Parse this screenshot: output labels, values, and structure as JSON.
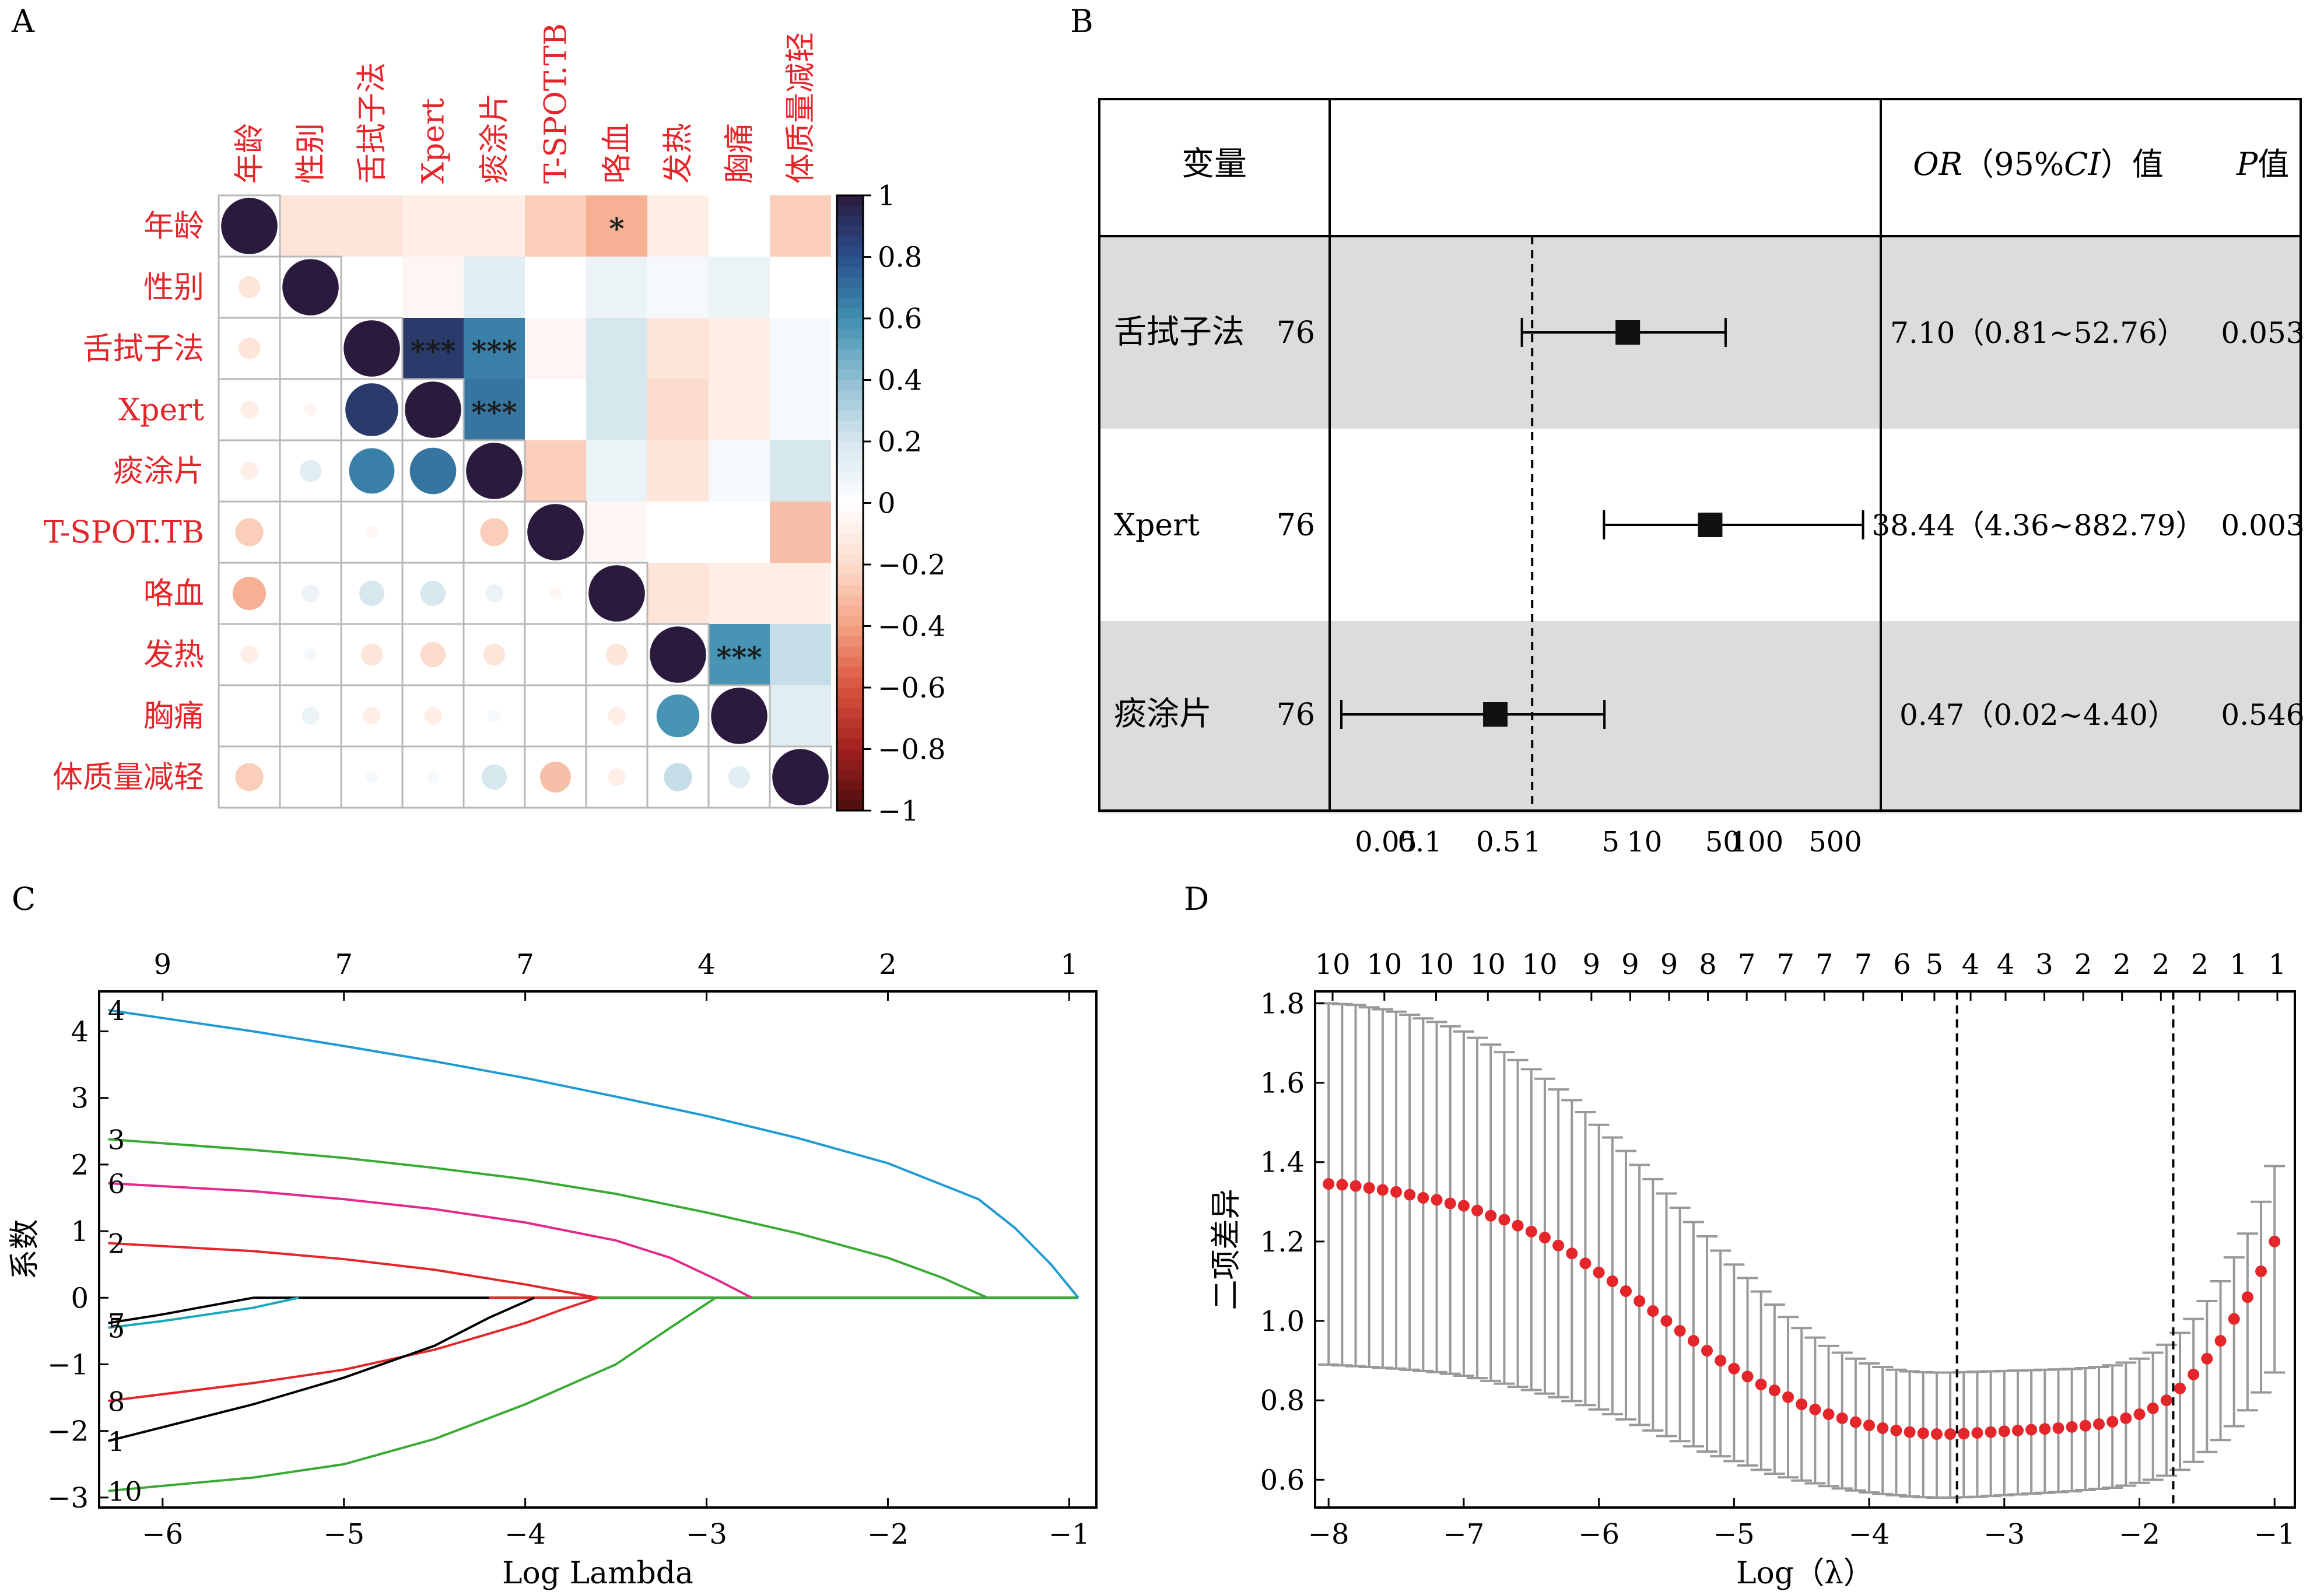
{
  "panels": {
    "A": "A",
    "B": "B",
    "C": "C",
    "D": "D"
  },
  "chart_data": [
    {
      "panel": "A",
      "type": "heatmap",
      "variables": [
        "年龄",
        "性别",
        "舌拭子法",
        "Xpert",
        "痰涂片",
        "T-SPOT.TB",
        "咯血",
        "发热",
        "胸痛",
        "体质量减轻"
      ],
      "upper_triangle": "color tiles",
      "lower_triangle": "circles sized by |r|",
      "matrix": [
        [
          1,
          -0.15,
          -0.15,
          -0.1,
          -0.1,
          -0.25,
          -0.35,
          -0.1,
          0,
          -0.25
        ],
        [
          -0.15,
          1,
          0,
          -0.05,
          0.15,
          0,
          0.1,
          0.05,
          0.1,
          0
        ],
        [
          -0.15,
          0,
          1,
          0.88,
          0.65,
          -0.05,
          0.2,
          -0.15,
          -0.1,
          0.05
        ],
        [
          -0.1,
          -0.05,
          0.88,
          1,
          0.68,
          0,
          0.2,
          -0.2,
          -0.1,
          0.05
        ],
        [
          -0.1,
          0.15,
          0.65,
          0.68,
          1,
          -0.25,
          0.1,
          -0.15,
          0.05,
          0.2
        ],
        [
          -0.25,
          0,
          -0.05,
          0,
          -0.25,
          1,
          -0.05,
          0,
          0,
          -0.3
        ],
        [
          -0.35,
          0.1,
          0.2,
          0.2,
          0.1,
          -0.05,
          1,
          -0.15,
          -0.1,
          -0.1
        ],
        [
          -0.1,
          0.05,
          -0.15,
          -0.2,
          -0.15,
          0,
          -0.15,
          1,
          0.58,
          0.25
        ],
        [
          0,
          0.1,
          -0.1,
          -0.1,
          0.05,
          0,
          -0.1,
          0.58,
          1,
          0.15
        ],
        [
          -0.25,
          0,
          0.05,
          0.05,
          0.2,
          -0.3,
          -0.1,
          0.25,
          0.15,
          1
        ]
      ],
      "significance": [
        {
          "row": 0,
          "col": 6,
          "label": "*"
        },
        {
          "row": 2,
          "col": 3,
          "label": "***"
        },
        {
          "row": 2,
          "col": 4,
          "label": "***"
        },
        {
          "row": 3,
          "col": 4,
          "label": "***"
        },
        {
          "row": 7,
          "col": 8,
          "label": "***"
        }
      ],
      "colorbar_ticks": [
        "1",
        "0.8",
        "0.6",
        "0.4",
        "0.2",
        "0",
        "−0.2",
        "−0.4",
        "−0.6",
        "−0.8",
        "−1"
      ],
      "colors": {
        "pos": "#2a1a3d",
        "mid": "#ffffff",
        "neg": "#4a0d0d"
      }
    },
    {
      "panel": "B",
      "type": "forest",
      "header": {
        "variable": "变量",
        "or_ci": "OR（95%CI）值",
        "or_part": "OR",
        "ci_open": "（95%",
        "ci_part": "CI",
        "ci_close": "）值",
        "p_part": "P",
        "p_suffix": "值"
      },
      "rows": [
        {
          "name": "舌拭子法",
          "n": "76",
          "or": 7.1,
          "lo": 0.81,
          "hi": 52.76,
          "or_text": "7.10（0.81~52.76）",
          "p": "0.053",
          "shaded": true
        },
        {
          "name": "Xpert",
          "n": "76",
          "or": 38.44,
          "lo": 4.36,
          "hi": 882.79,
          "or_text": "38.44（4.36~882.79）",
          "p": "0.003",
          "shaded": false
        },
        {
          "name": "痰涂片",
          "n": "76",
          "or": 0.47,
          "lo": 0.02,
          "hi": 4.4,
          "or_text": "0.47（0.02~4.40）",
          "p": "0.546",
          "shaded": true
        }
      ],
      "xaxis": {
        "scale": "log",
        "ticks": [
          0.05,
          0.1,
          0.5,
          1,
          5,
          10,
          50,
          100,
          500
        ],
        "tick_labels": [
          "0.05",
          "0.1",
          "0.5",
          "1",
          "5",
          "10",
          "50",
          "100",
          "500"
        ],
        "reference": 1
      }
    },
    {
      "panel": "C",
      "type": "line",
      "xlabel": "Log Lambda",
      "ylabel": "系数",
      "xlim": [
        -6.35,
        -0.85
      ],
      "ylim": [
        -3.15,
        4.6
      ],
      "xticks": [
        -6,
        -5,
        -4,
        -3,
        -2,
        -1
      ],
      "xtick_labels": [
        "−6",
        "−5",
        "−4",
        "−3",
        "−2",
        "−1"
      ],
      "yticks": [
        -3,
        -2,
        -1,
        0,
        1,
        2,
        3,
        4
      ],
      "ytick_labels": [
        "−3",
        "−2",
        "−1",
        "0",
        "1",
        "2",
        "3",
        "4"
      ],
      "top_ticks": [
        {
          "x": -6.0,
          "label": "9"
        },
        {
          "x": -5.0,
          "label": "7"
        },
        {
          "x": -4.0,
          "label": "7"
        },
        {
          "x": -3.0,
          "label": "4"
        },
        {
          "x": -2.0,
          "label": "2"
        },
        {
          "x": -1.0,
          "label": "1"
        }
      ],
      "series": [
        {
          "name": "4",
          "color": "#1f9bd1",
          "x": [
            -6.3,
            -6.0,
            -5.5,
            -5.0,
            -4.5,
            -4.0,
            -3.5,
            -3.0,
            -2.5,
            -2.0,
            -1.5,
            -1.3,
            -1.1,
            -0.95
          ],
          "y": [
            4.32,
            4.2,
            4.0,
            3.78,
            3.55,
            3.3,
            3.02,
            2.73,
            2.4,
            2.02,
            1.48,
            1.05,
            0.5,
            0.0
          ]
        },
        {
          "name": "3",
          "color": "#3aaa35",
          "x": [
            -6.3,
            -5.5,
            -5.0,
            -4.5,
            -4.0,
            -3.5,
            -3.0,
            -2.5,
            -2.0,
            -1.7,
            -1.45
          ],
          "y": [
            2.38,
            2.22,
            2.1,
            1.95,
            1.78,
            1.56,
            1.28,
            0.97,
            0.6,
            0.3,
            0.0
          ]
        },
        {
          "name": "6",
          "color": "#e5288c",
          "x": [
            -6.3,
            -5.5,
            -5.0,
            -4.5,
            -4.0,
            -3.5,
            -3.2,
            -2.95,
            -2.75
          ],
          "y": [
            1.72,
            1.6,
            1.48,
            1.33,
            1.13,
            0.86,
            0.6,
            0.28,
            0.0
          ]
        },
        {
          "name": "2",
          "color": "#e4262b",
          "x": [
            -6.3,
            -5.5,
            -5.0,
            -4.5,
            -4.0,
            -3.8,
            -3.6
          ],
          "y": [
            0.82,
            0.7,
            0.58,
            0.42,
            0.2,
            0.1,
            0.0
          ]
        },
        {
          "name": "7",
          "color": "#000000",
          "x": [
            -6.3,
            -6.0,
            -5.7,
            -5.5
          ],
          "y": [
            -0.38,
            -0.25,
            -0.1,
            0.0
          ]
        },
        {
          "name": "5",
          "color": "#19a9b8",
          "x": [
            -6.3,
            -6.0,
            -5.5,
            -5.25
          ],
          "y": [
            -0.45,
            -0.35,
            -0.15,
            0.0
          ]
        },
        {
          "name": "8",
          "color": "#e4262b",
          "x": [
            -6.3,
            -5.5,
            -5.0,
            -4.5,
            -4.0,
            -3.8,
            -3.6
          ],
          "y": [
            -1.55,
            -1.28,
            -1.08,
            -0.78,
            -0.38,
            -0.18,
            0.0
          ]
        },
        {
          "name": "1",
          "color": "#000000",
          "x": [
            -6.3,
            -5.5,
            -5.0,
            -4.5,
            -4.2,
            -3.95
          ],
          "y": [
            -2.15,
            -1.6,
            -1.2,
            -0.72,
            -0.3,
            0.0
          ]
        },
        {
          "name": "10",
          "color": "#3aaa35",
          "x": [
            -6.3,
            -5.5,
            -5.0,
            -4.5,
            -4.0,
            -3.5,
            -3.2,
            -2.95
          ],
          "y": [
            -2.9,
            -2.7,
            -2.5,
            -2.12,
            -1.6,
            -1.0,
            -0.45,
            0.0
          ]
        }
      ],
      "zero_line": {
        "color": "#3aaa35",
        "x": [
          -5.5,
          -0.95
        ]
      }
    },
    {
      "panel": "D",
      "type": "scatter",
      "xlabel": "Log（λ）",
      "xlabel_prefix": "Log（",
      "xlabel_symbol": "λ",
      "xlabel_suffix": "）",
      "ylabel": "二项差异",
      "xlim": [
        -8.1,
        -0.85
      ],
      "ylim": [
        0.53,
        1.83
      ],
      "xticks": [
        -8,
        -7,
        -6,
        -5,
        -4,
        -3,
        -2,
        -1
      ],
      "xtick_labels": [
        "−8",
        "−7",
        "−6",
        "−5",
        "−4",
        "−3",
        "−2",
        "−1"
      ],
      "yticks": [
        0.6,
        0.8,
        1.0,
        1.2,
        1.4,
        1.6,
        1.8
      ],
      "ytick_labels": [
        "0.6",
        "0.8",
        "1.0",
        "1.2",
        "1.4",
        "1.6",
        "1.8"
      ],
      "top_ticks": [
        {
          "x": -8.0,
          "label": "10"
        },
        {
          "x": -7.6,
          "label": "10"
        },
        {
          "x": -7.2,
          "label": "10"
        },
        {
          "x": -6.8,
          "label": "10"
        },
        {
          "x": -6.4,
          "label": "10"
        },
        {
          "x": -6.0,
          "label": "9"
        },
        {
          "x": -5.7,
          "label": "9"
        },
        {
          "x": -5.4,
          "label": "9"
        },
        {
          "x": -5.1,
          "label": "8"
        },
        {
          "x": -4.8,
          "label": "7"
        },
        {
          "x": -4.5,
          "label": "7"
        },
        {
          "x": -4.2,
          "label": "7"
        },
        {
          "x": -3.9,
          "label": "7"
        },
        {
          "x": -3.6,
          "label": "6"
        },
        {
          "x": -3.35,
          "label": "5"
        },
        {
          "x": -3.07,
          "label": "4"
        },
        {
          "x": -2.8,
          "label": "4"
        },
        {
          "x": -2.5,
          "label": "3"
        },
        {
          "x": -2.2,
          "label": "2"
        },
        {
          "x": -1.9,
          "label": "2"
        },
        {
          "x": -1.6,
          "label": "2"
        },
        {
          "x": -1.3,
          "label": "2"
        },
        {
          "x": -1.0,
          "label": "1"
        },
        {
          "x": -0.7,
          "label": "1"
        }
      ],
      "vlines": [
        -3.35,
        -1.75
      ],
      "point_color": "#e4262b",
      "errorbar_color": "#999999",
      "x": [
        -8.0,
        -7.9,
        -7.8,
        -7.7,
        -7.6,
        -7.5,
        -7.4,
        -7.3,
        -7.2,
        -7.1,
        -7.0,
        -6.9,
        -6.8,
        -6.7,
        -6.6,
        -6.5,
        -6.4,
        -6.3,
        -6.2,
        -6.1,
        -6.0,
        -5.9,
        -5.8,
        -5.7,
        -5.6,
        -5.5,
        -5.4,
        -5.3,
        -5.2,
        -5.1,
        -5.0,
        -4.9,
        -4.8,
        -4.7,
        -4.6,
        -4.5,
        -4.4,
        -4.3,
        -4.2,
        -4.1,
        -4.0,
        -3.9,
        -3.8,
        -3.7,
        -3.6,
        -3.5,
        -3.4,
        -3.3,
        -3.2,
        -3.1,
        -3.0,
        -2.9,
        -2.8,
        -2.7,
        -2.6,
        -2.5,
        -2.4,
        -2.3,
        -2.2,
        -2.1,
        -2.0,
        -1.9,
        -1.8,
        -1.7,
        -1.6,
        -1.5,
        -1.4,
        -1.3,
        -1.2,
        -1.1,
        -1.0
      ],
      "y": [
        1.345,
        1.343,
        1.34,
        1.335,
        1.33,
        1.325,
        1.318,
        1.31,
        1.305,
        1.296,
        1.29,
        1.278,
        1.265,
        1.255,
        1.24,
        1.225,
        1.21,
        1.19,
        1.17,
        1.145,
        1.122,
        1.1,
        1.075,
        1.05,
        1.025,
        1.0,
        0.975,
        0.95,
        0.925,
        0.9,
        0.88,
        0.86,
        0.84,
        0.825,
        0.808,
        0.79,
        0.777,
        0.765,
        0.755,
        0.745,
        0.737,
        0.73,
        0.724,
        0.72,
        0.717,
        0.715,
        0.715,
        0.716,
        0.718,
        0.72,
        0.722,
        0.724,
        0.726,
        0.728,
        0.73,
        0.733,
        0.736,
        0.74,
        0.746,
        0.755,
        0.765,
        0.78,
        0.8,
        0.83,
        0.865,
        0.905,
        0.95,
        1.005,
        1.06,
        1.125,
        1.2
      ],
      "err_lo": [
        0.89,
        0.888,
        0.886,
        0.884,
        0.882,
        0.88,
        0.877,
        0.874,
        0.871,
        0.867,
        0.862,
        0.856,
        0.849,
        0.842,
        0.834,
        0.826,
        0.817,
        0.808,
        0.798,
        0.788,
        0.777,
        0.765,
        0.752,
        0.738,
        0.724,
        0.71,
        0.697,
        0.684,
        0.671,
        0.659,
        0.647,
        0.636,
        0.625,
        0.615,
        0.606,
        0.598,
        0.591,
        0.584,
        0.578,
        0.573,
        0.568,
        0.564,
        0.561,
        0.558,
        0.556,
        0.555,
        0.555,
        0.556,
        0.557,
        0.559,
        0.561,
        0.563,
        0.565,
        0.567,
        0.569,
        0.571,
        0.574,
        0.577,
        0.58,
        0.585,
        0.592,
        0.6,
        0.61,
        0.625,
        0.645,
        0.67,
        0.7,
        0.735,
        0.775,
        0.82,
        0.87
      ],
      "err_hi": [
        1.8,
        1.798,
        1.796,
        1.79,
        1.785,
        1.779,
        1.771,
        1.762,
        1.753,
        1.742,
        1.729,
        1.713,
        1.696,
        1.677,
        1.657,
        1.634,
        1.61,
        1.583,
        1.556,
        1.526,
        1.494,
        1.462,
        1.428,
        1.393,
        1.357,
        1.321,
        1.285,
        1.249,
        1.213,
        1.177,
        1.142,
        1.108,
        1.074,
        1.041,
        1.01,
        0.982,
        0.958,
        0.937,
        0.92,
        0.905,
        0.893,
        0.884,
        0.877,
        0.873,
        0.871,
        0.87,
        0.87,
        0.871,
        0.872,
        0.873,
        0.874,
        0.875,
        0.876,
        0.877,
        0.878,
        0.879,
        0.881,
        0.884,
        0.888,
        0.895,
        0.905,
        0.92,
        0.94,
        0.97,
        1.005,
        1.05,
        1.1,
        1.16,
        1.22,
        1.3,
        1.39
      ]
    }
  ]
}
